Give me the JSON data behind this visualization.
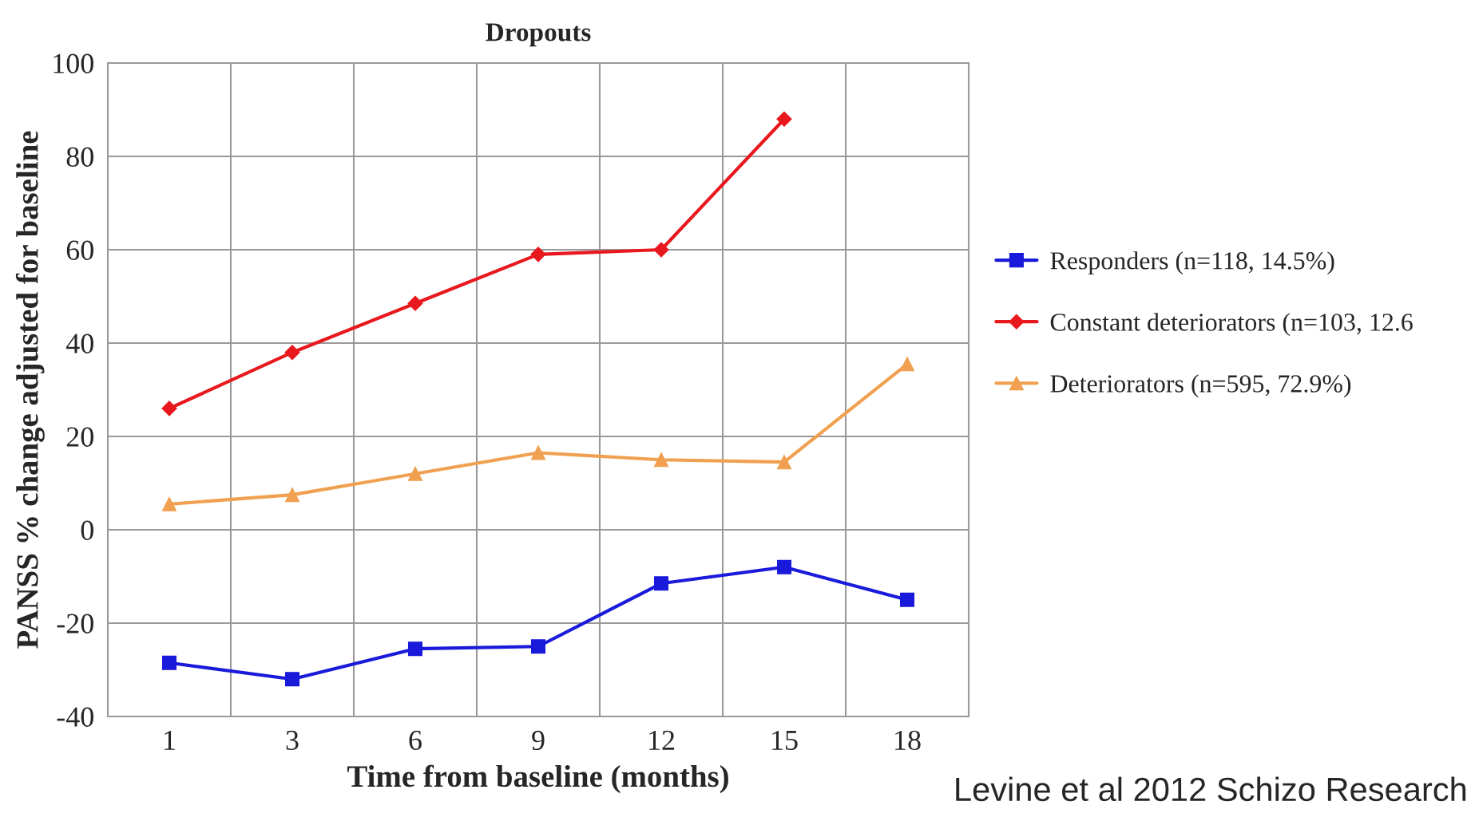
{
  "chart_data": {
    "type": "line",
    "title": "Dropouts",
    "xlabel": "Time from baseline (months)",
    "ylabel": "PANSS % change adjusted for baseline",
    "categories": [
      "1",
      "3",
      "6",
      "9",
      "12",
      "15",
      "18"
    ],
    "series": [
      {
        "name": "Responders (n=118, 14.5%)",
        "color": "#1a1adb",
        "marker": "square",
        "values": [
          -28.5,
          -32,
          -25.5,
          -25,
          -11.5,
          -8,
          -15
        ]
      },
      {
        "name": "Constant deteriorators (n=103, 12.6",
        "color": "#e8191e",
        "marker": "diamond",
        "values": [
          26,
          38,
          48.5,
          59,
          60,
          88,
          null
        ]
      },
      {
        "name": "Deteriorators (n=595, 72.9%)",
        "color": "#f0a050",
        "marker": "triangle",
        "values": [
          5.5,
          7.5,
          12,
          16.5,
          15,
          14.5,
          35.5
        ]
      }
    ],
    "ylim": [
      -40,
      100
    ],
    "yticks": [
      -40,
      -20,
      0,
      20,
      40,
      60,
      80,
      100
    ],
    "grid": true,
    "legend": "right",
    "annotations": [
      "Levine et al 2012 Schizo Research"
    ]
  }
}
